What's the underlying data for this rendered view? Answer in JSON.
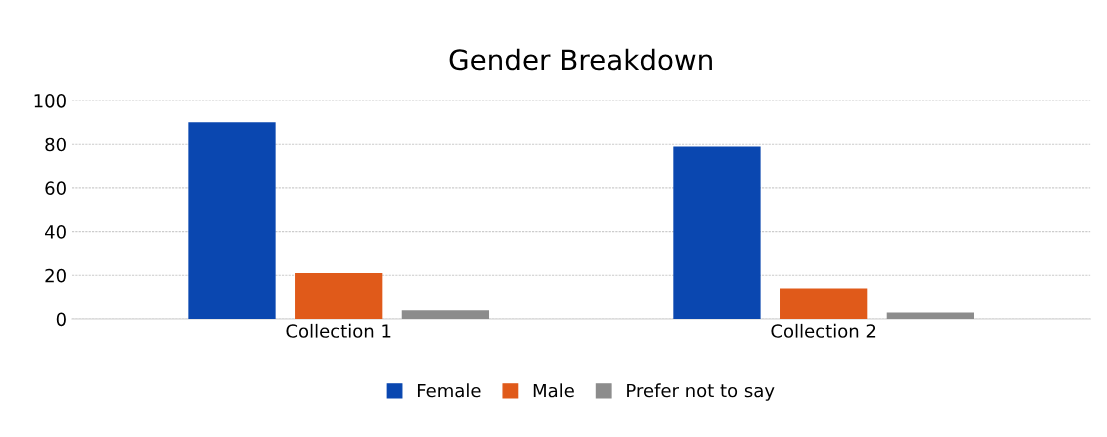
{
  "chart_data": {
    "type": "bar",
    "title": "Gender Breakdown",
    "categories": [
      "Collection 1",
      "Collection 2"
    ],
    "series": [
      {
        "name": "Female",
        "color": "#0a47b0",
        "values": [
          90,
          79
        ]
      },
      {
        "name": "Male",
        "color": "#e05a1a",
        "values": [
          21,
          14
        ]
      },
      {
        "name": "Prefer not to say",
        "color": "#8c8c8c",
        "values": [
          4,
          3
        ]
      }
    ],
    "ylim": [
      0,
      100
    ],
    "yticks": [
      0,
      20,
      40,
      60,
      80,
      100
    ],
    "grid": "y",
    "legend": "bottom"
  }
}
